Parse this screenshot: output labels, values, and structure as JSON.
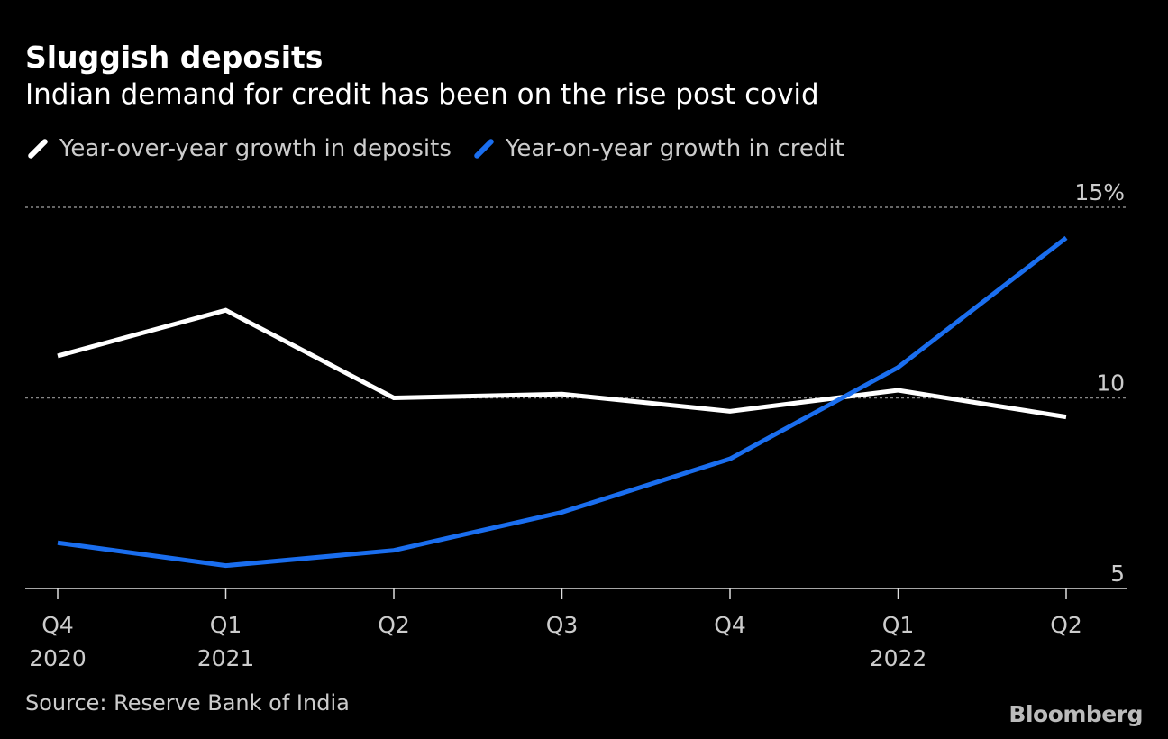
{
  "chart_data": {
    "type": "line",
    "title": "Sluggish deposits",
    "subtitle": "Indian demand for credit has been on the rise post covid",
    "categories": [
      [
        "Q4",
        "2020"
      ],
      [
        "Q1",
        "2021"
      ],
      [
        "Q2",
        ""
      ],
      [
        "Q3",
        ""
      ],
      [
        "Q4",
        ""
      ],
      [
        "Q1",
        "2022"
      ],
      [
        "Q2",
        ""
      ]
    ],
    "series": [
      {
        "name": "Year-over-year growth in deposits",
        "color": "#ffffff",
        "values": [
          11.1,
          12.3,
          10.0,
          10.1,
          9.65,
          10.2,
          9.5
        ]
      },
      {
        "name": "Year-on-year growth in credit",
        "color": "#1a6eef",
        "values": [
          6.2,
          5.6,
          6.0,
          7.0,
          8.4,
          10.8,
          14.2
        ]
      }
    ],
    "ylim": [
      5,
      15
    ],
    "yticks": [
      {
        "value": 15,
        "label": "15%"
      },
      {
        "value": 10,
        "label": "10"
      },
      {
        "value": 5,
        "label": "5"
      }
    ],
    "grid": true,
    "legend": "top-left",
    "source": "Source: Reserve Bank of India",
    "logo": "Bloomberg"
  }
}
